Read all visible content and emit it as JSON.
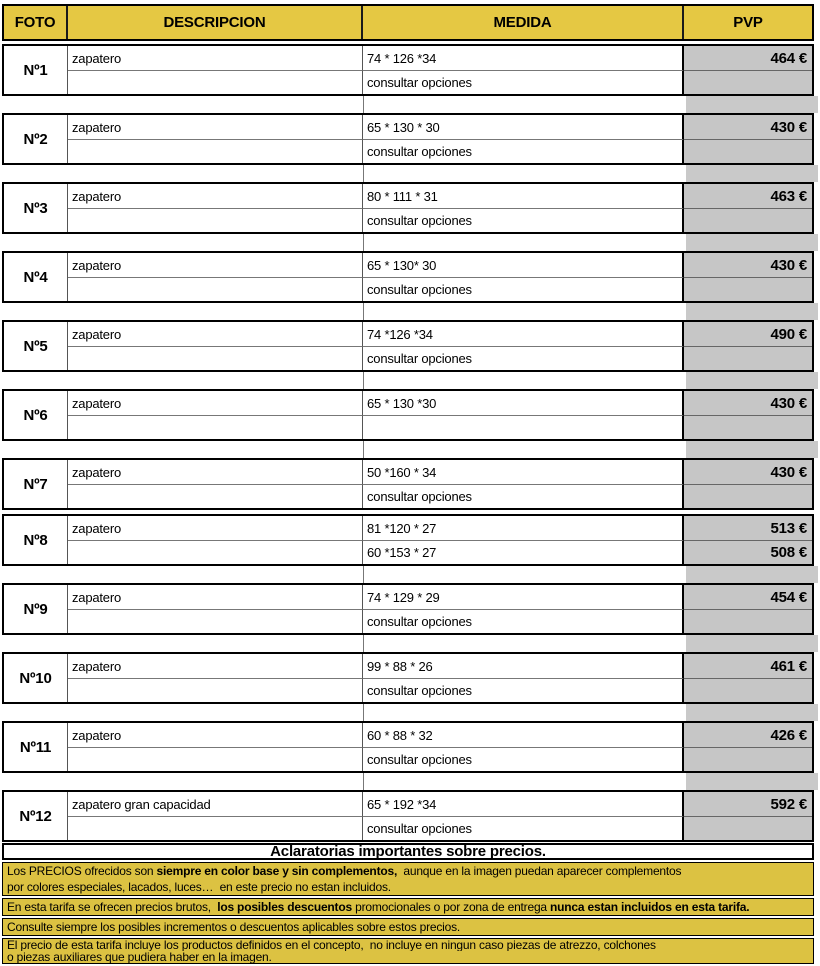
{
  "header": {
    "foto": "FOTO",
    "descripcion": "DESCRIPCION",
    "medida": "MEDIDA",
    "pvp": "PVP"
  },
  "colors": {
    "header_yellow": "#e5c843",
    "note_yellow": "#dcc242",
    "price_gray": "#c6c6c6",
    "gap_gray": "#c9c9c9"
  },
  "rows": [
    {
      "num": "Nº1",
      "descripcion": "zapatero",
      "medida1": "74 * 126 *34",
      "medida2": "consultar opciones",
      "pvp1": "464 €",
      "pvp2": "",
      "gap_after": true
    },
    {
      "num": "Nº2",
      "descripcion": "zapatero",
      "medida1": "65 * 130 * 30",
      "medida2": "consultar opciones",
      "pvp1": "430 €",
      "pvp2": "",
      "gap_after": true
    },
    {
      "num": "Nº3",
      "descripcion": "zapatero",
      "medida1": "80 * 111 * 31",
      "medida2": "consultar opciones",
      "pvp1": "463 €",
      "pvp2": "",
      "gap_after": true
    },
    {
      "num": "Nº4",
      "descripcion": "zapatero",
      "medida1": "65 * 130* 30",
      "medida2": "consultar opciones",
      "pvp1": "430 €",
      "pvp2": "",
      "gap_after": true
    },
    {
      "num": "Nº5",
      "descripcion": "zapatero",
      "medida1": "74 *126 *34",
      "medida2": "consultar opciones",
      "pvp1": "490 €",
      "pvp2": "",
      "gap_after": true
    },
    {
      "num": "Nº6",
      "descripcion": "zapatero",
      "medida1": "65 * 130 *30",
      "medida2": "",
      "pvp1": "430 €",
      "pvp2": "",
      "gap_after": true
    },
    {
      "num": "Nº7",
      "descripcion": "zapatero",
      "medida1": "50 *160 * 34",
      "medida2": "consultar opciones",
      "pvp1": "430 €",
      "pvp2": "",
      "gap_after": false
    },
    {
      "num": "Nº8",
      "descripcion": "zapatero",
      "medida1": "81 *120 * 27",
      "medida2": "60 *153 * 27",
      "pvp1": "513 €",
      "pvp2": "508 €",
      "gap_after": true
    },
    {
      "num": "Nº9",
      "descripcion": "zapatero",
      "medida1": "74 * 129 * 29",
      "medida2": "consultar opciones",
      "pvp1": "454 €",
      "pvp2": "",
      "gap_after": true
    },
    {
      "num": "Nº10",
      "descripcion": "zapatero",
      "medida1": "99 * 88 * 26",
      "medida2": "consultar opciones",
      "pvp1": "461 €",
      "pvp2": "",
      "gap_after": true
    },
    {
      "num": "Nº11",
      "descripcion": "zapatero",
      "medida1": "60 * 88 * 32",
      "medida2": "consultar opciones",
      "pvp1": "426 €",
      "pvp2": "",
      "gap_after": true
    },
    {
      "num": "Nº12",
      "descripcion": "zapatero gran capacidad",
      "medida1": "65 * 192 *34",
      "medida2": "consultar opciones",
      "pvp1": "592 €",
      "pvp2": "",
      "gap_after": false
    }
  ],
  "notes": {
    "title": "Aclaratorias importantes sobre precios.",
    "blocks": [
      {
        "lines": [
          [
            [
              "Los PRECIOS ofrecidos son ",
              false
            ],
            [
              "siempre en color base y sin complementos,",
              true
            ],
            [
              "  aunque en la imagen puedan aparecer complementos",
              false
            ]
          ],
          [
            [
              "por colores especiales, lacados, luces…  en este precio no estan incluidos.",
              false
            ]
          ]
        ]
      },
      {
        "lines": [
          [
            [
              "En esta tarifa se ofrecen precios brutos,  ",
              false
            ],
            [
              "los posibles descuentos",
              true
            ],
            [
              " promocionales o por zona de entrega ",
              false
            ],
            [
              "nunca estan incluidos en esta tarifa.",
              true
            ]
          ]
        ]
      },
      {
        "lines": [
          [
            [
              "Consulte siempre los posibles incrementos o descuentos aplicables sobre estos precios.",
              false
            ]
          ]
        ]
      },
      {
        "lines": [
          [
            [
              "El precio de esta tarifa incluye los productos definidos en el concepto,  no incluye en ningun caso piezas de atrezzo, colchones",
              false
            ]
          ],
          [
            [
              "o piezas auxiliares que pudiera haber en la imagen.",
              false
            ]
          ]
        ]
      }
    ]
  }
}
